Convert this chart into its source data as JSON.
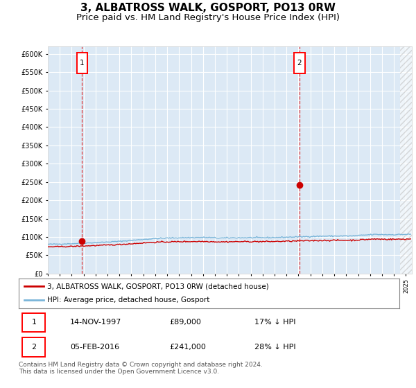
{
  "title": "3, ALBATROSS WALK, GOSPORT, PO13 0RW",
  "subtitle": "Price paid vs. HM Land Registry's House Price Index (HPI)",
  "ylim": [
    0,
    620000
  ],
  "yticks": [
    0,
    50000,
    100000,
    150000,
    200000,
    250000,
    300000,
    350000,
    400000,
    450000,
    500000,
    550000,
    600000
  ],
  "xlim_start": 1995.0,
  "xlim_end": 2025.5,
  "background_color": "#dce9f5",
  "grid_color": "#ffffff",
  "hpi_color": "#7ab5d9",
  "price_color": "#cc0000",
  "purchase1_date": 1997.87,
  "purchase1_price": 89000,
  "purchase2_date": 2016.09,
  "purchase2_price": 241000,
  "legend_label1": "3, ALBATROSS WALK, GOSPORT, PO13 0RW (detached house)",
  "legend_label2": "HPI: Average price, detached house, Gosport",
  "table_row1": [
    "1",
    "14-NOV-1997",
    "£89,000",
    "17% ↓ HPI"
  ],
  "table_row2": [
    "2",
    "05-FEB-2016",
    "£241,000",
    "28% ↓ HPI"
  ],
  "footnote": "Contains HM Land Registry data © Crown copyright and database right 2024.\nThis data is licensed under the Open Government Licence v3.0.",
  "title_fontsize": 11,
  "subtitle_fontsize": 9.5
}
